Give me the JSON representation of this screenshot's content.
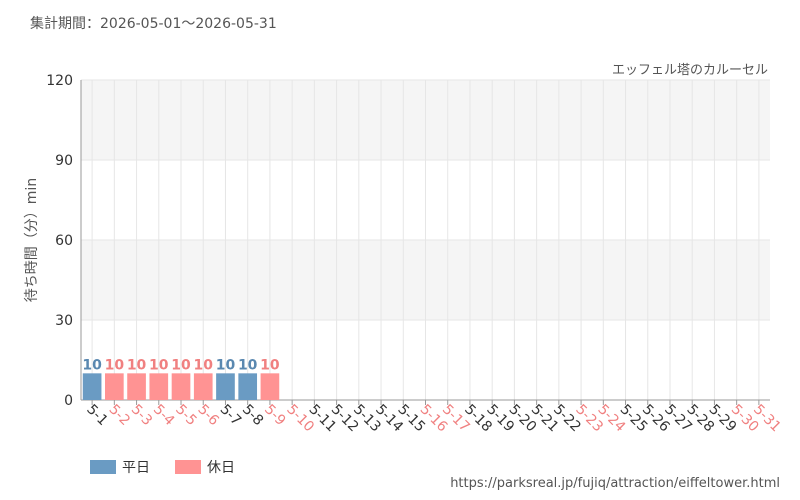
{
  "chart_data": {
    "type": "bar",
    "title": "集計期間：2026-05-01～2026-05-31",
    "subtitle": "エッフェル塔のカルーセル",
    "y_label": "待ち時間（分）min",
    "source": "https://parksreal.jp/fujiq/attraction/eiffeltower.html",
    "categories": [
      "5-1",
      "5-2",
      "5-3",
      "5-4",
      "5-5",
      "5-6",
      "5-7",
      "5-8",
      "5-9",
      "5-10",
      "5-11",
      "5-12",
      "5-13",
      "5-14",
      "5-15",
      "5-16",
      "5-17",
      "5-18",
      "5-19",
      "5-20",
      "5-21",
      "5-22",
      "5-23",
      "5-24",
      "5-25",
      "5-26",
      "5-27",
      "5-28",
      "5-29",
      "5-30",
      "5-31"
    ],
    "category_colors": [
      "#333",
      "#f08080",
      "#f08080",
      "#f08080",
      "#f08080",
      "#f08080",
      "#333",
      "#333",
      "#f08080",
      "#f08080",
      "#333",
      "#333",
      "#333",
      "#333",
      "#333",
      "#f08080",
      "#f08080",
      "#333",
      "#333",
      "#333",
      "#333",
      "#333",
      "#f08080",
      "#f08080",
      "#333",
      "#333",
      "#333",
      "#333",
      "#333",
      "#f08080",
      "#f08080"
    ],
    "series": [
      {
        "name": "平日",
        "color": "#6a9bc3",
        "label_color": "#5a88b0",
        "values": [
          10,
          null,
          null,
          null,
          null,
          null,
          10,
          10,
          null,
          null,
          null,
          null,
          null,
          null,
          null,
          null,
          null,
          null,
          null,
          null,
          null,
          null,
          null,
          null,
          null,
          null,
          null,
          null,
          null,
          null,
          null
        ]
      },
      {
        "name": "休日",
        "color": "#ff9393",
        "label_color": "#f08080",
        "values": [
          null,
          10,
          10,
          10,
          10,
          10,
          null,
          null,
          10,
          null,
          null,
          null,
          null,
          null,
          null,
          null,
          null,
          null,
          null,
          null,
          null,
          null,
          null,
          null,
          null,
          null,
          null,
          null,
          null,
          null,
          null
        ]
      }
    ],
    "ylim": [
      0,
      120
    ],
    "yticks": [
      0,
      30,
      60,
      90,
      120
    ],
    "grid": true
  }
}
